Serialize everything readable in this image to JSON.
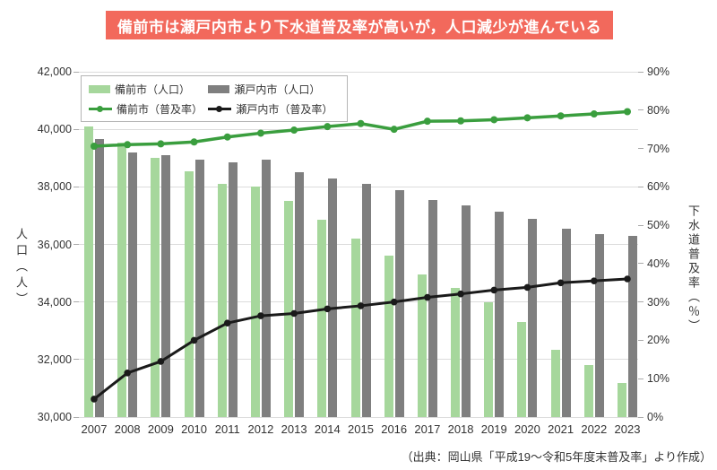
{
  "title_banner": {
    "text": "備前市は瀬戸内市より下水道普及率が高いが，人口減少が進んでいる",
    "bg_color": "#F2695C",
    "text_color": "#FFFFFF"
  },
  "source_note": "（出典：岡山県「平成19～令和5年度末普及率」より作成）",
  "colors": {
    "grid": "#DCDCDC",
    "tick": "#AAAAAA",
    "text": "#333333",
    "background": "#FFFFFF"
  },
  "chart_data": {
    "type": "bar+line",
    "categories": [
      "2007",
      "2008",
      "2009",
      "2010",
      "2011",
      "2012",
      "2013",
      "2014",
      "2015",
      "2016",
      "2017",
      "2018",
      "2019",
      "2020",
      "2021",
      "2022",
      "2023"
    ],
    "series": [
      {
        "id": "bizen-pop",
        "name": "備前市（人口）",
        "type": "bar",
        "axis": "left",
        "color": "#A6D79C",
        "values": [
          40100,
          39550,
          39000,
          38550,
          38100,
          38000,
          37500,
          36850,
          36200,
          35600,
          34950,
          34500,
          34000,
          33300,
          32350,
          31800,
          31200
        ]
      },
      {
        "id": "setouchi-pop",
        "name": "瀬戸内市（人口）",
        "type": "bar",
        "axis": "left",
        "color": "#7F7F7F",
        "values": [
          39650,
          39200,
          39100,
          38950,
          38850,
          38950,
          38500,
          38300,
          38100,
          37900,
          37550,
          37350,
          37150,
          36900,
          36550,
          36350,
          36300
        ]
      },
      {
        "id": "bizen-rate",
        "name": "備前市（普及率）",
        "type": "line",
        "axis": "right",
        "color": "#3A9E3E",
        "values": [
          70.6,
          71.0,
          71.2,
          71.7,
          73.0,
          74.0,
          74.8,
          75.7,
          76.5,
          75.0,
          77.1,
          77.2,
          77.5,
          78.0,
          78.5,
          79.0,
          79.6
        ]
      },
      {
        "id": "setouchi-rate",
        "name": "瀬戸内市（普及率）",
        "type": "line",
        "axis": "right",
        "color": "#1A1A1A",
        "values": [
          4.7,
          11.5,
          14.5,
          20.0,
          24.5,
          26.4,
          27.0,
          28.2,
          29.0,
          30.0,
          31.2,
          32.1,
          33.1,
          33.8,
          35.0,
          35.5,
          36.0
        ]
      }
    ],
    "left_axis": {
      "label": "人口（人）",
      "min": 30000,
      "max": 42000,
      "tick_step": 2000
    },
    "right_axis": {
      "label": "下水道普及率（％）",
      "min": 0,
      "max": 90,
      "tick_step": 10,
      "unit": "%"
    },
    "grid": true,
    "legend_position": "top-left"
  }
}
